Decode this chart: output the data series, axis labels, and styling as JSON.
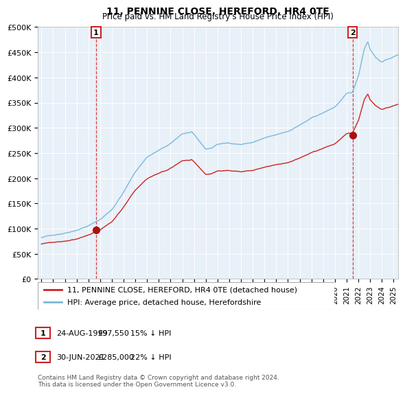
{
  "title": "11, PENNINE CLOSE, HEREFORD, HR4 0TE",
  "subtitle": "Price paid vs. HM Land Registry's House Price Index (HPI)",
  "ylabel_ticks": [
    "£0",
    "£50K",
    "£100K",
    "£150K",
    "£200K",
    "£250K",
    "£300K",
    "£350K",
    "£400K",
    "£450K",
    "£500K"
  ],
  "ytick_values": [
    0,
    50000,
    100000,
    150000,
    200000,
    250000,
    300000,
    350000,
    400000,
    450000,
    500000
  ],
  "ylim": [
    0,
    500000
  ],
  "hpi_color": "#7ab8d9",
  "price_color": "#cc2222",
  "marker_color": "#aa1111",
  "annotation_box_color": "#cc2222",
  "legend_label_red": "11, PENNINE CLOSE, HEREFORD, HR4 0TE (detached house)",
  "legend_label_blue": "HPI: Average price, detached house, Herefordshire",
  "sale1_date": "24-AUG-1999",
  "sale1_price": "£97,550",
  "sale1_hpi": "15% ↓ HPI",
  "sale1_year": 1999.65,
  "sale1_value": 97550,
  "sale2_date": "30-JUN-2021",
  "sale2_price": "£285,000",
  "sale2_hpi": "22% ↓ HPI",
  "sale2_year": 2021.5,
  "sale2_value": 285000,
  "footer": "Contains HM Land Registry data © Crown copyright and database right 2024.\nThis data is licensed under the Open Government Licence v3.0.",
  "xstart": 1994.7,
  "xend": 2025.4,
  "background_color": "#e8f0f8",
  "plot_bg_color": "#e8f0f8",
  "grid_color": "#ffffff"
}
